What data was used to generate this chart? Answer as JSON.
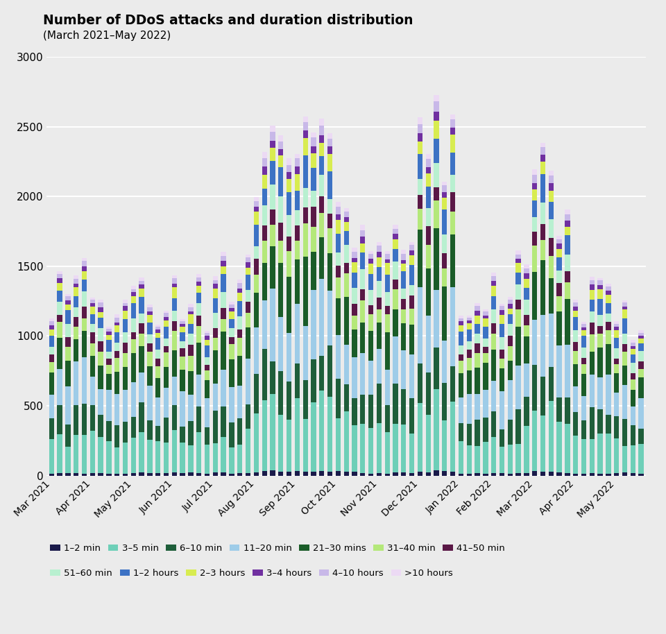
{
  "title": "Number of DDoS attacks and duration distribution",
  "subtitle": "(March 2021–May 2022)",
  "bg_color": "#ebebeb",
  "categories": [
    "1–2 min",
    "3–5 min",
    "6–10 min",
    "11–20 min",
    "21–30 mins",
    "31–40 min",
    "41–50 min",
    "51–60 min",
    "1–2 hours",
    "2–3 hours",
    "3–4 hours",
    "4–10 hours",
    ">10 hours"
  ],
  "colors": [
    "#1a1a4a",
    "#6ecfb8",
    "#1e5e3a",
    "#9ecce8",
    "#1a5c28",
    "#b4e87a",
    "#5a1846",
    "#b8f0d0",
    "#3c72c4",
    "#d8ec50",
    "#7030a0",
    "#c8b8e8",
    "#ecdaf4"
  ],
  "months": [
    "Mar 2021",
    "Apr 2021",
    "May 2021",
    "Jun 2021",
    "Jul 2021",
    "Aug 2021",
    "Sep 2021",
    "Oct 2021",
    "Nov 2021",
    "Dec 2021",
    "Jan 2022",
    "Feb 2022",
    "Mar 2022",
    "Apr 2022",
    "May 2022"
  ],
  "proportions": [
    0.012,
    0.185,
    0.13,
    0.178,
    0.145,
    0.072,
    0.048,
    0.06,
    0.068,
    0.042,
    0.022,
    0.022,
    0.016
  ],
  "monthly_peaks": [
    1330,
    1260,
    1280,
    1250,
    1380,
    2300,
    2580,
    1750,
    1700,
    2380,
    1180,
    1500,
    2050,
    1220,
    1120
  ],
  "n_months": 15,
  "weeks_per_month": [
    5,
    5,
    5,
    5,
    5,
    5,
    5,
    5,
    5,
    5,
    4,
    5,
    5,
    5,
    4
  ]
}
